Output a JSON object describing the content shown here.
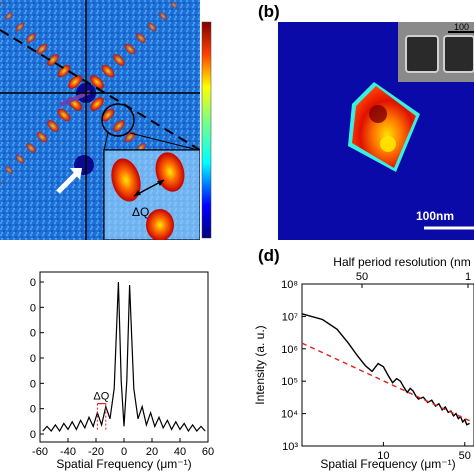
{
  "panel_a": {
    "delta_label": "ΔQ"
  },
  "panel_b": {
    "letter": "(b)",
    "scale_bar_label": "100nm",
    "inset_scale_label": "100"
  },
  "panel_c": {
    "delta_label": "ΔQ"
  },
  "panel_d": {
    "letter": "(d)"
  },
  "chart_data": [
    {
      "type": "line",
      "panel": "c",
      "xlabel": "Spatial Frequency (μm⁻¹)",
      "ylabel": "",
      "xlim": [
        -60,
        60
      ],
      "x_ticks": [
        -60,
        -40,
        -20,
        0,
        20,
        40,
        60
      ],
      "y_tick_labels_visible": [
        "0",
        "0",
        "0",
        "0",
        "0",
        "0",
        "0"
      ],
      "annotation": "ΔQ",
      "grid": false,
      "series": [
        {
          "x": [
            -58,
            -55,
            -52,
            -49,
            -46,
            -43,
            -40,
            -37,
            -34,
            -31,
            -28,
            -25,
            -22,
            -19,
            -16,
            -13,
            -10,
            -7,
            -4,
            -2,
            0,
            2,
            4,
            7,
            10,
            13,
            16,
            19,
            22,
            25,
            28,
            31,
            34,
            37,
            40,
            43,
            46,
            49,
            52,
            55,
            58
          ],
          "y": [
            0.02,
            0.05,
            0.02,
            0.06,
            0.02,
            0.07,
            0.03,
            0.08,
            0.03,
            0.09,
            0.04,
            0.11,
            0.05,
            0.14,
            0.06,
            0.18,
            0.1,
            0.3,
            1.0,
            0.35,
            0.05,
            0.35,
            0.98,
            0.3,
            0.1,
            0.18,
            0.06,
            0.14,
            0.05,
            0.11,
            0.04,
            0.09,
            0.03,
            0.08,
            0.03,
            0.07,
            0.02,
            0.06,
            0.02,
            0.05,
            0.02
          ]
        }
      ]
    },
    {
      "type": "line",
      "panel": "d",
      "xlabel": "Spatial Frequency (μm⁻¹)",
      "ylabel": "Intensity (a. u.)",
      "top_xlabel": "Half period resolution (nm",
      "top_x_ticks": [
        "50",
        "1"
      ],
      "yscale": "log",
      "ylim": [
        1000,
        100000000
      ],
      "y_tick_labels": [
        "10³",
        "10⁴",
        "10⁵",
        "10⁶",
        "10⁷",
        "10⁸"
      ],
      "x_tick_labels": [
        "10",
        "50"
      ],
      "grid": false,
      "series": [
        {
          "style": "solid",
          "color": "#000000",
          "x": [
            2,
            3,
            4,
            5,
            6,
            7,
            8,
            9,
            10,
            11,
            12,
            13,
            14,
            15,
            16,
            17,
            18,
            19,
            20,
            22,
            24,
            26,
            28,
            30,
            32,
            34,
            36,
            38,
            40,
            42,
            44,
            46,
            48,
            50,
            52,
            55
          ],
          "y": [
            12000000,
            8000000,
            4000000,
            1500000,
            600000,
            300000,
            200000,
            350000,
            280000,
            150000,
            90000,
            120000,
            100000,
            65000,
            45000,
            60000,
            50000,
            35000,
            28000,
            32000,
            22000,
            26000,
            17000,
            20000,
            13000,
            16000,
            11000,
            12000,
            8500,
            10000,
            7000,
            8000,
            5500,
            6500,
            4500,
            5000
          ]
        },
        {
          "style": "dashed",
          "color": "#e02020",
          "x": [
            2,
            55
          ],
          "y": [
            1500000,
            6000
          ]
        }
      ]
    }
  ]
}
